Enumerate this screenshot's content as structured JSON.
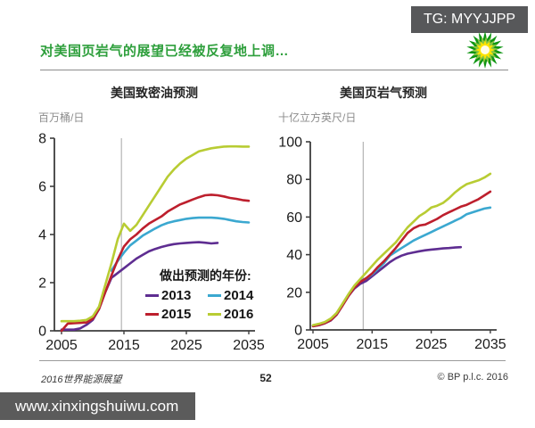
{
  "overlay": {
    "tg_label": "TG: MYYJJPP",
    "watermark": "www.xinxingshuiwu.com",
    "box_color": "#57585a"
  },
  "header": {
    "title": "对美国页岩气的展望已经被反复地上调…",
    "title_color": "#2e9f3c",
    "logo_icon": "bp-helios-logo"
  },
  "legend": {
    "title": "做出预测的年份:",
    "items": [
      {
        "label": "2013",
        "color": "#5e2d91"
      },
      {
        "label": "2014",
        "color": "#3ba8d0"
      },
      {
        "label": "2015",
        "color": "#bd1f2d"
      },
      {
        "label": "2016",
        "color": "#b8cc33"
      }
    ]
  },
  "footer": {
    "left": "2016世界能源展望",
    "page_number": "52",
    "right": "© BP p.l.c. 2016"
  },
  "chart_data": [
    {
      "type": "line",
      "title": "美国致密油预测",
      "ylabel": "百万桶/日",
      "xlim": [
        2005,
        2035
      ],
      "ylim": [
        0,
        8
      ],
      "x_ticks": [
        2005,
        2015,
        2025,
        2035
      ],
      "y_ticks": [
        0,
        2,
        4,
        6,
        8
      ],
      "grid": "single vertical line",
      "gridline_year": 2014.6,
      "legend_position": "inside lower right",
      "series": [
        {
          "name": "2013",
          "color": "#5e2d91",
          "start_year": 2005,
          "values": [
            0.05,
            0.05,
            0.05,
            0.1,
            0.25,
            0.45,
            0.9,
            1.6,
            2.2,
            2.4,
            2.6,
            2.8,
            3.0,
            3.15,
            3.3,
            3.4,
            3.48,
            3.55,
            3.6,
            3.63,
            3.65,
            3.67,
            3.68,
            3.66,
            3.63,
            3.65
          ]
        },
        {
          "name": "2014",
          "color": "#3ba8d0",
          "start_year": 2013,
          "values": [
            2.5,
            2.9,
            3.25,
            3.55,
            3.75,
            3.95,
            4.1,
            4.25,
            4.38,
            4.48,
            4.55,
            4.6,
            4.65,
            4.68,
            4.7,
            4.7,
            4.7,
            4.68,
            4.65,
            4.6,
            4.55,
            4.52,
            4.5
          ]
        },
        {
          "name": "2015",
          "color": "#bd1f2d",
          "start_year": 2005,
          "values": [
            0.0,
            0.3,
            0.32,
            0.33,
            0.35,
            0.5,
            0.9,
            1.6,
            2.3,
            2.95,
            3.5,
            3.8,
            4.0,
            4.25,
            4.45,
            4.6,
            4.75,
            4.95,
            5.1,
            5.25,
            5.35,
            5.45,
            5.55,
            5.63,
            5.65,
            5.63,
            5.58,
            5.52,
            5.48,
            5.43,
            5.4
          ]
        },
        {
          "name": "2016",
          "color": "#b8cc33",
          "start_year": 2005,
          "values": [
            0.4,
            0.4,
            0.4,
            0.42,
            0.45,
            0.6,
            1.0,
            1.9,
            2.8,
            3.8,
            4.45,
            4.15,
            4.4,
            4.8,
            5.2,
            5.6,
            6.0,
            6.4,
            6.7,
            6.95,
            7.15,
            7.3,
            7.45,
            7.52,
            7.58,
            7.62,
            7.65,
            7.66,
            7.66,
            7.65,
            7.65
          ]
        }
      ]
    },
    {
      "type": "line",
      "title": "美国页岩气预测",
      "ylabel": "十亿立方英尺/日",
      "xlim": [
        2005,
        2035
      ],
      "ylim": [
        0,
        100
      ],
      "x_ticks": [
        2005,
        2015,
        2025,
        2035
      ],
      "y_ticks": [
        0,
        20,
        40,
        60,
        80,
        100
      ],
      "grid": "single vertical line",
      "gridline_year": 2013.5,
      "series": [
        {
          "name": "2013",
          "color": "#5e2d91",
          "start_year": 2005,
          "values": [
            2,
            2.5,
            3.5,
            5,
            8,
            13,
            18,
            22,
            24.5,
            26,
            28.5,
            31,
            33.5,
            36,
            38,
            39.5,
            40.5,
            41.2,
            41.8,
            42.3,
            42.7,
            43,
            43.3,
            43.5,
            43.8,
            44
          ]
        },
        {
          "name": "2014",
          "color": "#3ba8d0",
          "start_year": 2005,
          "values": [
            2.2,
            2.8,
            3.8,
            5.5,
            8.5,
            13.5,
            18.5,
            23,
            26,
            27.5,
            29.5,
            32.5,
            35.5,
            39.5,
            41.5,
            43.5,
            45.5,
            47.5,
            49,
            50.5,
            52,
            53.5,
            55,
            56.5,
            58,
            59.5,
            61.5,
            62.5,
            63.5,
            64.5,
            65
          ]
        },
        {
          "name": "2015",
          "color": "#bd1f2d",
          "start_year": 2005,
          "values": [
            2,
            2.6,
            3.6,
            5.2,
            8.2,
            13,
            18,
            22.5,
            25.5,
            27.5,
            30,
            33.5,
            36.5,
            40,
            43.5,
            47.5,
            51.5,
            54,
            55.5,
            56,
            57.5,
            59,
            61,
            62.5,
            64,
            65.5,
            66.5,
            68,
            69.5,
            71.5,
            73.5
          ]
        },
        {
          "name": "2016",
          "color": "#b8cc33",
          "start_year": 2005,
          "values": [
            2.5,
            3.2,
            4.2,
            6,
            9,
            14,
            19,
            23.5,
            27,
            30.5,
            34,
            37.5,
            40.5,
            43.5,
            46.5,
            50.5,
            54.5,
            57.5,
            60.5,
            62.5,
            65,
            66,
            67.5,
            70,
            73,
            75.5,
            77.5,
            78.5,
            79.5,
            81,
            83
          ]
        }
      ]
    }
  ]
}
